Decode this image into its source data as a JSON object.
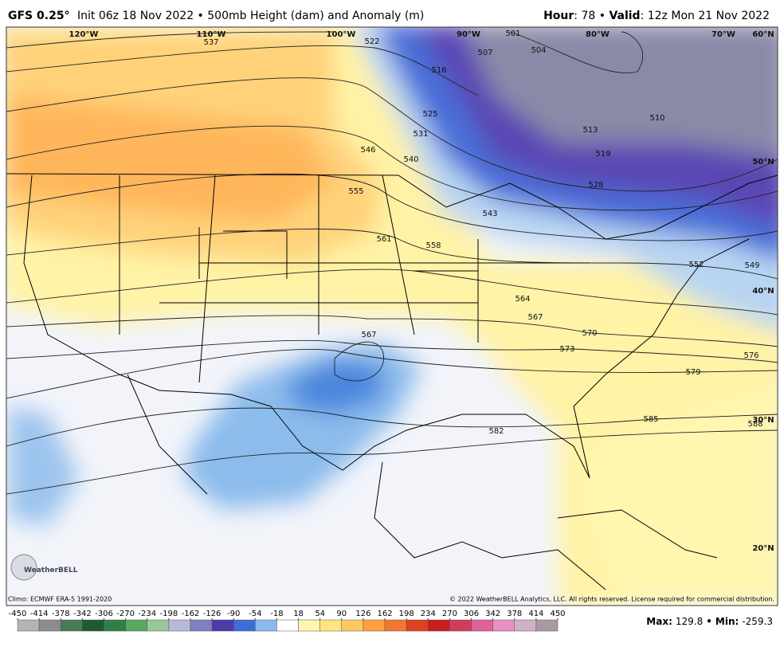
{
  "header": {
    "model": "GFS 0.25°",
    "title": "Init 06z 18 Nov 2022 • 500mb Height (dam) and Anomaly (m)",
    "valid": [
      {
        "text": "Hour",
        "bold": true
      },
      {
        "text": ": 78 • "
      },
      {
        "text": "Valid",
        "bold": true
      },
      {
        "text": ": 12z Mon 21 Nov 2022"
      }
    ]
  },
  "map": {
    "longitude_labels": [
      "120°W",
      "110°W",
      "100°W",
      "90°W",
      "80°W",
      "70°W",
      "60°N"
    ],
    "latitude_labels": [
      "50°N",
      "40°N",
      "30°N",
      "20°N"
    ],
    "contour_labels": [
      537,
      522,
      516,
      525,
      531,
      540,
      546,
      555,
      561,
      558,
      501,
      507,
      504,
      510,
      513,
      519,
      528,
      543,
      552,
      549,
      564,
      567,
      570,
      573,
      576,
      579,
      585,
      588,
      582,
      567
    ],
    "logo": "WeatherBELL"
  },
  "footer": {
    "climo": "Climo: ECMWF ERA-5 1991-2020",
    "copyright": "© 2022 WeatherBELL Analytics, LLC. All rights reserved. License required for commercial distribution."
  },
  "colorbar": {
    "ticks": [
      -450,
      -414,
      -378,
      -342,
      -306,
      -270,
      -234,
      -198,
      -162,
      -126,
      -90,
      -54,
      -18,
      18,
      54,
      90,
      126,
      162,
      198,
      234,
      270,
      306,
      342,
      378,
      414,
      450
    ],
    "colors": [
      "#b4b4b4",
      "#8c8c8c",
      "#4a7a52",
      "#1e5a32",
      "#2e8048",
      "#58a85e",
      "#98c898",
      "#b8b8d8",
      "#8080c0",
      "#4c3ca8",
      "#3c6ed8",
      "#8ab8ee",
      "#ffffff",
      "#fff6b0",
      "#ffe680",
      "#ffc860",
      "#ffa040",
      "#f07830",
      "#e04020",
      "#c81e1e",
      "#d23c5a",
      "#e0609a",
      "#e890c0",
      "#d0b0c8",
      "#a89aa0"
    ]
  },
  "stats": {
    "max_label": "Max:",
    "max": 129.8,
    "separator": "•",
    "min_label": "Min:",
    "min": -259.3
  }
}
